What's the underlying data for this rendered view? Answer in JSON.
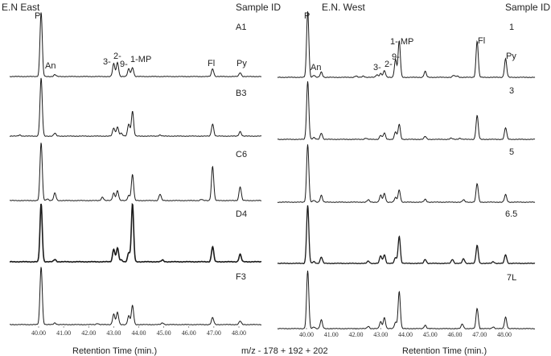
{
  "footer": {
    "mz": "m/z - 178 + 192 + 202"
  },
  "chart_data": [
    {
      "type": "line",
      "subtype": "stacked chromatograms",
      "title": "E.N East",
      "legend_header": "Sample ID",
      "xlabel": "Retention Time (min.)",
      "ylabel": "",
      "xlim": [
        39.0,
        48.9
      ],
      "x_ticks": [
        "40.00",
        "41.00",
        "42.00",
        "43.00",
        "44.00",
        "45.00",
        "46.00",
        "47.00",
        "48.00"
      ],
      "peak_labels": [
        {
          "label": "P",
          "rt": 40.1
        },
        {
          "label": "An",
          "rt": 40.65
        },
        {
          "label": "3-",
          "rt": 43.0
        },
        {
          "label": "2-",
          "rt": 43.15
        },
        {
          "label": "9-",
          "rt": 43.6
        },
        {
          "label": "1-MP",
          "rt": 43.75
        },
        {
          "label": "Fl",
          "rt": 46.95
        },
        {
          "label": "Py",
          "rt": 48.05
        }
      ],
      "series": [
        {
          "name": "A1",
          "peaks": [
            [
              40.1,
              100
            ],
            [
              40.65,
              3
            ],
            [
              43.0,
              20
            ],
            [
              43.15,
              22
            ],
            [
              43.6,
              12
            ],
            [
              43.75,
              14
            ],
            [
              46.95,
              12
            ],
            [
              48.05,
              6
            ]
          ]
        },
        {
          "name": "B3",
          "peaks": [
            [
              39.25,
              2
            ],
            [
              40.1,
              100
            ],
            [
              40.65,
              5
            ],
            [
              43.0,
              14
            ],
            [
              43.15,
              16
            ],
            [
              43.3,
              5
            ],
            [
              43.6,
              21
            ],
            [
              43.75,
              43
            ],
            [
              44.85,
              2
            ],
            [
              46.95,
              21
            ],
            [
              48.05,
              8
            ]
          ]
        },
        {
          "name": "C6",
          "peaks": [
            [
              40.1,
              100
            ],
            [
              40.35,
              3
            ],
            [
              40.65,
              13
            ],
            [
              42.55,
              6
            ],
            [
              43.0,
              13
            ],
            [
              43.15,
              17
            ],
            [
              43.6,
              9
            ],
            [
              43.75,
              45
            ],
            [
              44.85,
              11
            ],
            [
              46.5,
              2
            ],
            [
              46.95,
              59
            ],
            [
              48.05,
              24
            ]
          ]
        },
        {
          "name": "D4",
          "peaks": [
            [
              40.1,
              100
            ],
            [
              40.65,
              4
            ],
            [
              43.0,
              22
            ],
            [
              43.15,
              24
            ],
            [
              43.3,
              3
            ],
            [
              43.6,
              16
            ],
            [
              43.75,
              100
            ],
            [
              44.95,
              3
            ],
            [
              46.95,
              26
            ],
            [
              48.05,
              13
            ]
          ]
        },
        {
          "name": "F3",
          "peaks": [
            [
              40.1,
              100
            ],
            [
              40.65,
              3
            ],
            [
              42.35,
              2
            ],
            [
              43.0,
              18
            ],
            [
              43.15,
              21
            ],
            [
              43.6,
              15
            ],
            [
              43.75,
              33
            ],
            [
              44.95,
              3
            ],
            [
              46.95,
              12
            ],
            [
              48.05,
              6
            ]
          ]
        }
      ]
    },
    {
      "type": "line",
      "subtype": "stacked chromatograms",
      "title": "E.N. West",
      "legend_header": "Sample ID",
      "xlabel": "Retention Time (min.)",
      "ylabel": "",
      "xlim": [
        38.9,
        48.9
      ],
      "x_ticks": [
        "40.00",
        "41.00",
        "42.00",
        "43.00",
        "44.00",
        "45.00",
        "46.00",
        "47.00",
        "48.00"
      ],
      "peak_labels": [
        {
          "label": "P",
          "rt": 40.05
        },
        {
          "label": "An",
          "rt": 40.6
        },
        {
          "label": "3-",
          "rt": 43.0
        },
        {
          "label": "2-",
          "rt": 43.15
        },
        {
          "label": "9-",
          "rt": 43.6
        },
        {
          "label": "1- MP",
          "rt": 43.75
        },
        {
          "label": "Fl",
          "rt": 46.9
        },
        {
          "label": "Py",
          "rt": 48.05
        }
      ],
      "series": [
        {
          "name": "1",
          "peaks": [
            [
              40.05,
              100
            ],
            [
              40.3,
              3
            ],
            [
              40.6,
              8
            ],
            [
              42.0,
              2
            ],
            [
              42.3,
              2
            ],
            [
              42.85,
              4
            ],
            [
              43.0,
              6
            ],
            [
              43.15,
              10
            ],
            [
              43.6,
              27
            ],
            [
              43.75,
              55
            ],
            [
              44.8,
              9
            ],
            [
              45.95,
              3
            ],
            [
              46.1,
              2
            ],
            [
              46.9,
              55
            ],
            [
              48.05,
              28
            ]
          ]
        },
        {
          "name": "3",
          "peaks": [
            [
              40.05,
              100
            ],
            [
              40.3,
              3
            ],
            [
              40.6,
              11
            ],
            [
              42.4,
              2
            ],
            [
              43.0,
              7
            ],
            [
              43.15,
              11
            ],
            [
              43.6,
              13
            ],
            [
              43.75,
              26
            ],
            [
              44.8,
              5
            ],
            [
              45.85,
              2
            ],
            [
              46.2,
              2
            ],
            [
              46.9,
              41
            ],
            [
              48.05,
              20
            ]
          ]
        },
        {
          "name": "5",
          "peaks": [
            [
              40.05,
              100
            ],
            [
              40.3,
              3
            ],
            [
              40.6,
              12
            ],
            [
              42.5,
              4
            ],
            [
              43.0,
              12
            ],
            [
              43.15,
              15
            ],
            [
              43.6,
              8
            ],
            [
              43.75,
              21
            ],
            [
              44.8,
              5
            ],
            [
              46.35,
              4
            ],
            [
              46.9,
              32
            ],
            [
              48.05,
              13
            ]
          ]
        },
        {
          "name": "6.5",
          "peaks": [
            [
              40.05,
              100
            ],
            [
              40.3,
              3
            ],
            [
              40.6,
              11
            ],
            [
              42.5,
              4
            ],
            [
              43.0,
              13
            ],
            [
              43.15,
              15
            ],
            [
              43.6,
              10
            ],
            [
              43.75,
              47
            ],
            [
              44.8,
              7
            ],
            [
              45.9,
              7
            ],
            [
              46.35,
              8
            ],
            [
              46.9,
              31
            ],
            [
              47.55,
              3
            ],
            [
              48.05,
              15
            ]
          ]
        },
        {
          "name": "7L",
          "peaks": [
            [
              40.05,
              100
            ],
            [
              40.3,
              3
            ],
            [
              40.6,
              15
            ],
            [
              42.5,
              4
            ],
            [
              43.0,
              12
            ],
            [
              43.15,
              19
            ],
            [
              43.6,
              11
            ],
            [
              43.75,
              64
            ],
            [
              44.8,
              6
            ],
            [
              46.3,
              8
            ],
            [
              46.9,
              35
            ],
            [
              47.55,
              3
            ],
            [
              48.05,
              20
            ]
          ]
        }
      ]
    }
  ]
}
